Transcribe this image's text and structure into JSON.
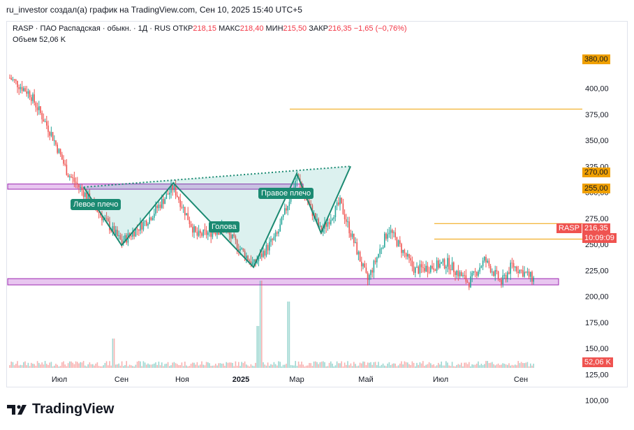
{
  "header": "ru_investor создал(а) график на TradingView.com, Сен 10, 2025 15:40 UTC+5",
  "legend": {
    "symbol": "RASP · ПАО Распадская · обыкн. · 1Д · RUS",
    "open_label": "ОТКР",
    "open": "218,15",
    "high_label": "МАКС",
    "high": "218,40",
    "low_label": "МИН",
    "low": "215,50",
    "close_label": "ЗАКР",
    "close": "216,35",
    "change": "−1,65 (−0,76%)",
    "volume_label": "Объем",
    "volume": "52,06 K"
  },
  "annotations": {
    "left_shoulder": "Левое плечо",
    "head": "Голова",
    "right_shoulder": "Правое плечо"
  },
  "price_tags": {
    "symbol": "RASP",
    "last": "216,35",
    "countdown": "10:09:09",
    "volume": "52,06 K",
    "levels": [
      "380,00",
      "270,00",
      "255,00"
    ]
  },
  "footer": {
    "brand": "TradingView"
  },
  "colors": {
    "up": "#26a69a",
    "down": "#ef5350",
    "level": "#f0a000",
    "zone": "#e8c6f0",
    "pattern": "#1b8a72"
  },
  "chart_data": {
    "type": "candlestick",
    "title": "RASP · ПАО Распадская · обыкн. · 1Д · RUS",
    "x_tick_labels": [
      "Июл",
      "Сен",
      "Ноя",
      "2025",
      "Мар",
      "Май",
      "Июл",
      "Сен"
    ],
    "y_tick_labels": [
      "100,00",
      "125,00",
      "150,00",
      "175,00",
      "200,00",
      "225,00",
      "250,00",
      "275,00",
      "300,00",
      "325,00",
      "350,00",
      "375,00",
      "400,00"
    ],
    "ylim": [
      100,
      400
    ],
    "ohlc_last": {
      "open": 218.15,
      "high": 218.4,
      "low": 215.5,
      "close": 216.35,
      "change": -1.65,
      "change_pct": -0.76
    },
    "volume_last": "52,06 K",
    "horizontal_levels": [
      380,
      270,
      255
    ],
    "zones": [
      {
        "label": "resistance",
        "from": 303,
        "to": 308
      },
      {
        "label": "support",
        "from": 211,
        "to": 217
      }
    ],
    "head_and_shoulders": [
      {
        "point": "start",
        "x": "2024-07-10",
        "y": 305
      },
      {
        "point": "Левое плечо",
        "x": "2024-08-15",
        "y": 249
      },
      {
        "point": "neck",
        "x": "2024-10-03",
        "y": 309
      },
      {
        "point": "Голова",
        "x": "2024-12-18",
        "y": 228
      },
      {
        "point": "neck",
        "x": "2025-01-28",
        "y": 318
      },
      {
        "point": "Правое плечо",
        "x": "2025-02-20",
        "y": 261
      },
      {
        "point": "end",
        "x": "2025-03-20",
        "y": 325
      }
    ],
    "neckline": [
      {
        "x": "2024-07-10",
        "y": 305
      },
      {
        "x": "2025-03-20",
        "y": 325
      }
    ],
    "close_path": [
      {
        "x": "2024-05-01",
        "y": 410
      },
      {
        "x": "2024-05-20",
        "y": 395
      },
      {
        "x": "2024-06-10",
        "y": 355
      },
      {
        "x": "2024-06-25",
        "y": 318
      },
      {
        "x": "2024-07-10",
        "y": 300
      },
      {
        "x": "2024-08-15",
        "y": 252
      },
      {
        "x": "2024-09-10",
        "y": 275
      },
      {
        "x": "2024-10-03",
        "y": 305
      },
      {
        "x": "2024-10-25",
        "y": 258
      },
      {
        "x": "2024-11-20",
        "y": 265
      },
      {
        "x": "2024-12-18",
        "y": 230
      },
      {
        "x": "2025-01-10",
        "y": 260
      },
      {
        "x": "2025-01-28",
        "y": 315
      },
      {
        "x": "2025-02-20",
        "y": 262
      },
      {
        "x": "2025-03-10",
        "y": 290
      },
      {
        "x": "2025-04-05",
        "y": 215
      },
      {
        "x": "2025-04-25",
        "y": 265
      },
      {
        "x": "2025-05-20",
        "y": 225
      },
      {
        "x": "2025-06-20",
        "y": 232
      },
      {
        "x": "2025-07-10",
        "y": 213
      },
      {
        "x": "2025-07-25",
        "y": 235
      },
      {
        "x": "2025-08-10",
        "y": 213
      },
      {
        "x": "2025-08-20",
        "y": 230
      },
      {
        "x": "2025-09-10",
        "y": 216.35
      }
    ]
  }
}
